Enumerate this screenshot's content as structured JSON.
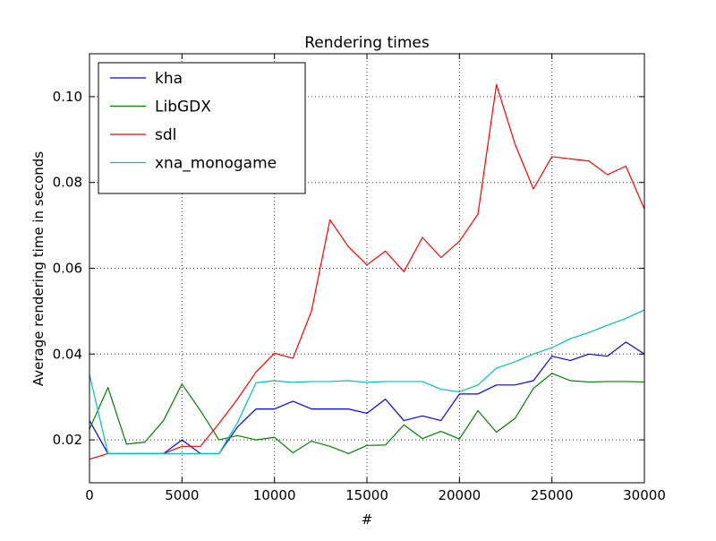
{
  "chart_data": {
    "type": "line",
    "title": "Rendering times",
    "xlabel": "#",
    "ylabel": "Average rendering time in seconds",
    "xlim": [
      0,
      30000
    ],
    "ylim": [
      0.01,
      0.11
    ],
    "xticks": [
      0,
      5000,
      10000,
      15000,
      20000,
      25000,
      30000
    ],
    "yticks": [
      0.02,
      0.04,
      0.06,
      0.08,
      0.1
    ],
    "xtick_labels": [
      "0",
      "5000",
      "10000",
      "15000",
      "20000",
      "25000",
      "30000"
    ],
    "ytick_labels": [
      "0.02",
      "0.04",
      "0.06",
      "0.08",
      "0.10"
    ],
    "grid": true,
    "legend_position": "top-left",
    "x": [
      0,
      1000,
      2000,
      3000,
      4000,
      5000,
      6000,
      7000,
      8000,
      9000,
      10000,
      11000,
      12000,
      13000,
      14000,
      15000,
      16000,
      17000,
      18000,
      19000,
      20000,
      21000,
      22000,
      23000,
      24000,
      25000,
      26000,
      27000,
      28000,
      29000,
      30000
    ],
    "series": [
      {
        "name": "kha",
        "color": "#0000ff",
        "values": [
          0.0245,
          0.0168,
          0.0168,
          0.0168,
          0.0168,
          0.02,
          0.0168,
          0.0168,
          0.023,
          0.0272,
          0.0272,
          0.029,
          0.0272,
          0.0272,
          0.0272,
          0.0262,
          0.0295,
          0.0245,
          0.0256,
          0.0245,
          0.0307,
          0.0307,
          0.0328,
          0.0328,
          0.0338,
          0.0395,
          0.0385,
          0.04,
          0.0395,
          0.0428,
          0.04
        ]
      },
      {
        "name": "LibGDX",
        "color": "#008000",
        "values": [
          0.0225,
          0.0322,
          0.019,
          0.0195,
          0.0245,
          0.033,
          0.0268,
          0.02,
          0.021,
          0.02,
          0.0206,
          0.017,
          0.0197,
          0.0185,
          0.0168,
          0.0187,
          0.0188,
          0.0235,
          0.0203,
          0.022,
          0.0202,
          0.0268,
          0.0218,
          0.025,
          0.032,
          0.0355,
          0.0338,
          0.0335,
          0.0336,
          0.0336,
          0.0335
        ]
      },
      {
        "name": "sdl",
        "color": "#ff0000",
        "values": [
          0.0155,
          0.0168,
          0.0168,
          0.0168,
          0.0168,
          0.0185,
          0.0185,
          0.0238,
          0.0295,
          0.0358,
          0.0402,
          0.039,
          0.05,
          0.0713,
          0.065,
          0.0608,
          0.064,
          0.0592,
          0.0672,
          0.0625,
          0.0663,
          0.0726,
          0.1028,
          0.089,
          0.0785,
          0.086,
          0.0855,
          0.085,
          0.0818,
          0.0838,
          0.0738
        ]
      },
      {
        "name": "xna_monogame",
        "color": "#00bfbf",
        "values": [
          0.0352,
          0.0168,
          0.0168,
          0.0168,
          0.0168,
          0.0168,
          0.0168,
          0.0168,
          0.024,
          0.0333,
          0.0338,
          0.0334,
          0.0336,
          0.0336,
          0.0338,
          0.0334,
          0.0336,
          0.0336,
          0.0336,
          0.0318,
          0.0312,
          0.0328,
          0.0367,
          0.0382,
          0.04,
          0.0415,
          0.0436,
          0.045,
          0.0467,
          0.0483,
          0.0503
        ]
      }
    ]
  }
}
